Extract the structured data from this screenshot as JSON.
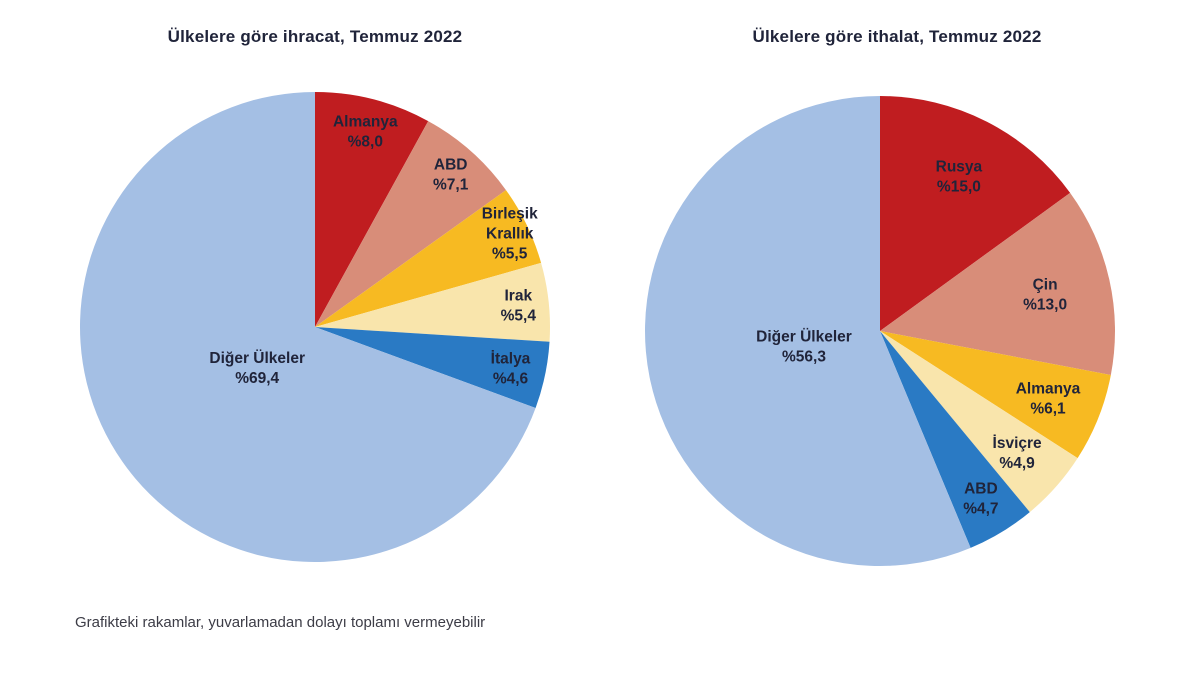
{
  "footer": {
    "note": "Grafikteki rakamlar, yuvarlamadan dolayı toplamı vermeyebilir"
  },
  "palette": {
    "title_text": "#20243a",
    "label_text": "#20243a",
    "footer_text": "#3c3c46",
    "background": "#ffffff",
    "dark_red": "#c01d20",
    "salmon": "#d88d79",
    "gold": "#f7ba22",
    "cream": "#f9e5ac",
    "blue": "#2a7ac4",
    "light_blue": "#a4bfe4"
  },
  "chart_data": [
    {
      "type": "pie",
      "title": "Ülkelere göre ihracat, Temmuz 2022",
      "start_angle_deg": 0,
      "direction": "clockwise",
      "legend_position": "none",
      "labels_position": "inside",
      "slices": [
        {
          "name": "Almanya",
          "name_lines": [
            "Almanya"
          ],
          "pct_label": "%8,0",
          "value": 8.0,
          "color": "#c01d20",
          "label_r": 0.86
        },
        {
          "name": "ABD",
          "name_lines": [
            "ABD"
          ],
          "pct_label": "%7,1",
          "value": 7.1,
          "color": "#d88d79",
          "label_r": 0.87
        },
        {
          "name": "Birleşik Krallık",
          "name_lines": [
            "Birleşik",
            "Krallık"
          ],
          "pct_label": "%5,5",
          "value": 5.5,
          "color": "#f7ba22",
          "label_r": 0.92
        },
        {
          "name": "Irak",
          "name_lines": [
            "Irak"
          ],
          "pct_label": "%5,4",
          "value": 5.4,
          "color": "#f9e5ac",
          "label_r": 0.87
        },
        {
          "name": "İtalya",
          "name_lines": [
            "İtalya"
          ],
          "pct_label": "%4,6",
          "value": 4.6,
          "color": "#2a7ac4",
          "label_r": 0.85
        },
        {
          "name": "Diğer Ülkeler",
          "name_lines": [
            "Diğer Ülkeler"
          ],
          "pct_label": "%69,4",
          "value": 69.4,
          "color": "#a4bfe4",
          "label_r": 0.3
        }
      ]
    },
    {
      "type": "pie",
      "title": "Ülkelere göre ithalat, Temmuz 2022",
      "start_angle_deg": 0,
      "direction": "clockwise",
      "legend_position": "none",
      "labels_position": "inside",
      "slices": [
        {
          "name": "Rusya",
          "name_lines": [
            "Rusya"
          ],
          "pct_label": "%15,0",
          "value": 15.0,
          "color": "#c01d20",
          "label_r": 0.74
        },
        {
          "name": "Çin",
          "name_lines": [
            "Çin"
          ],
          "pct_label": "%13,0",
          "value": 13.0,
          "color": "#d88d79",
          "label_r": 0.72
        },
        {
          "name": "Almanya",
          "name_lines": [
            "Almanya"
          ],
          "pct_label": "%6,1",
          "value": 6.1,
          "color": "#f7ba22",
          "label_r": 0.77
        },
        {
          "name": "İsviçre",
          "name_lines": [
            "İsviçre"
          ],
          "pct_label": "%4,9",
          "value": 4.9,
          "color": "#f9e5ac",
          "label_r": 0.78
        },
        {
          "name": "ABD",
          "name_lines": [
            "ABD"
          ],
          "pct_label": "%4,7",
          "value": 4.7,
          "color": "#2a7ac4",
          "label_r": 0.83
        },
        {
          "name": "Diğer Ülkeler",
          "name_lines": [
            "Diğer Ülkeler"
          ],
          "pct_label": "%56,3",
          "value": 56.3,
          "color": "#a4bfe4",
          "label_r": 0.33
        }
      ]
    }
  ]
}
